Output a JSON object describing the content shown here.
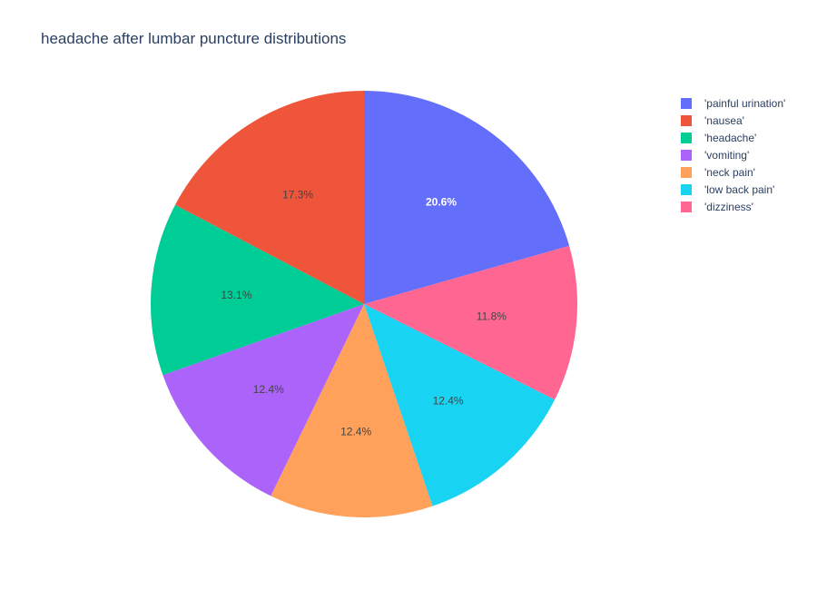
{
  "chart_data": {
    "type": "pie",
    "title": "headache after lumbar puncture distributions",
    "slices": [
      {
        "label": "'painful urination'",
        "value": 20.6,
        "text": "20.6%",
        "color": "#636efa",
        "text_color": "#ffffff"
      },
      {
        "label": "'dizziness'",
        "value": 11.8,
        "text": "11.8%",
        "color": "#ff6692",
        "text_color": "#444444"
      },
      {
        "label": "'low back pain'",
        "value": 12.4,
        "text": "12.4%",
        "color": "#19d3f3",
        "text_color": "#444444"
      },
      {
        "label": "'neck pain'",
        "value": 12.4,
        "text": "12.4%",
        "color": "#ffa15a",
        "text_color": "#444444"
      },
      {
        "label": "'vomiting'",
        "value": 12.4,
        "text": "12.4%",
        "color": "#ab63fa",
        "text_color": "#444444"
      },
      {
        "label": "'headache'",
        "value": 13.1,
        "text": "13.1%",
        "color": "#00cc96",
        "text_color": "#444444"
      },
      {
        "label": "'nausea'",
        "value": 17.3,
        "text": "17.3%",
        "color": "#ef553b",
        "text_color": "#444444"
      }
    ],
    "legend": {
      "placement": "top-right",
      "entries": [
        {
          "label": "'painful urination'",
          "color": "#636efa"
        },
        {
          "label": "'nausea'",
          "color": "#ef553b"
        },
        {
          "label": "'headache'",
          "color": "#00cc96"
        },
        {
          "label": "'vomiting'",
          "color": "#ab63fa"
        },
        {
          "label": "'neck pain'",
          "color": "#ffa15a"
        },
        {
          "label": "'low back pain'",
          "color": "#19d3f3"
        },
        {
          "label": "'dizziness'",
          "color": "#ff6692"
        }
      ]
    },
    "direction": "clockwise",
    "start": "top"
  }
}
